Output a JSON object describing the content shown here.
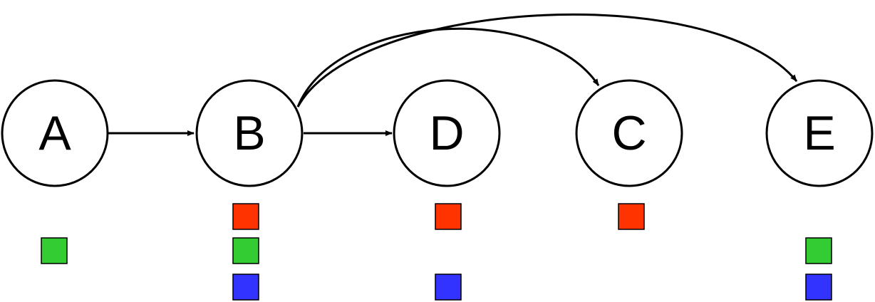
{
  "colors": {
    "red": "#ff3300",
    "green": "#33cc33",
    "blue": "#3333ff",
    "stroke": "#000000",
    "background": "#ffffff"
  },
  "nodes": [
    {
      "id": "A",
      "label": "A",
      "markers": [
        "green"
      ]
    },
    {
      "id": "B",
      "label": "B",
      "markers": [
        "red",
        "green",
        "blue"
      ]
    },
    {
      "id": "D",
      "label": "D",
      "markers": [
        "red",
        "blue"
      ]
    },
    {
      "id": "C",
      "label": "C",
      "markers": [
        "red"
      ]
    },
    {
      "id": "E",
      "label": "E",
      "markers": [
        "green",
        "blue"
      ]
    }
  ],
  "edges": [
    {
      "from": "A",
      "to": "B"
    },
    {
      "from": "B",
      "to": "D"
    },
    {
      "from": "B",
      "to": "C"
    },
    {
      "from": "B",
      "to": "E"
    }
  ]
}
